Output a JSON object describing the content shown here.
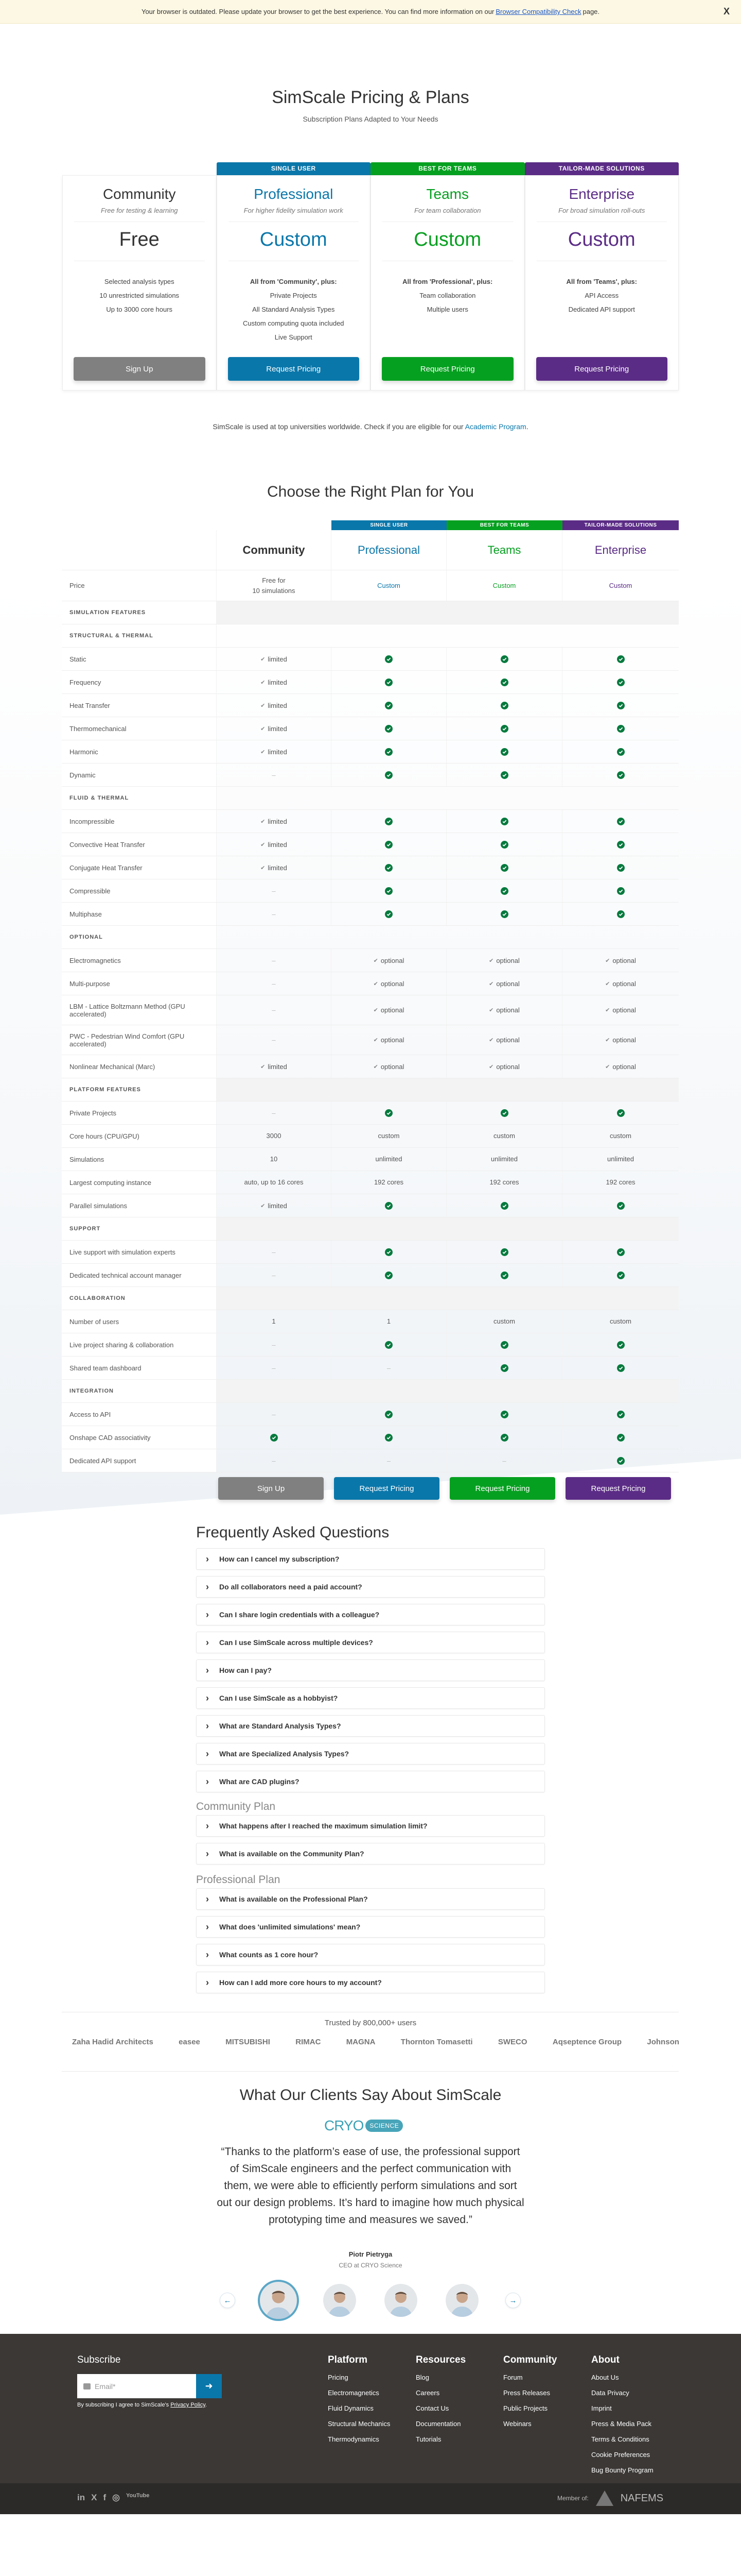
{
  "colors": {
    "community": "#808080",
    "professional": "#0a77aa",
    "teams": "#06a020",
    "enterprise": "#5b2c86",
    "check": "#067a3e"
  },
  "banner": {
    "text_before": "Your browser is outdated. Please update your browser to get the best experience. You can find more information on our",
    "link": "Browser Compatibility Check",
    "text_after": "page.",
    "close": "X"
  },
  "hero": {
    "title": "SimScale Pricing & Plans",
    "subtitle": "Subscription Plans Adapted to Your Needs"
  },
  "plans": [
    {
      "ribbon": "",
      "name": "Community",
      "tagline": "Free for testing & learning",
      "price": "Free",
      "features": [
        "Selected analysis types",
        "10 unrestricted simulations",
        "Up to 3000 core hours"
      ],
      "button": "Sign Up"
    },
    {
      "ribbon": "SINGLE USER",
      "name": "Professional",
      "tagline": "For higher fidelity simulation work",
      "price": "Custom",
      "features": [
        "All from 'Community', plus:",
        "Private Projects",
        "All Standard Analysis Types",
        "Custom computing quota included",
        "Live Support"
      ],
      "button": "Request Pricing"
    },
    {
      "ribbon": "BEST FOR TEAMS",
      "name": "Teams",
      "tagline": "For team collaboration",
      "price": "Custom",
      "features": [
        "All from 'Professional', plus:",
        "Team collaboration",
        "Multiple users"
      ],
      "button": "Request Pricing"
    },
    {
      "ribbon": "TAILOR-MADE SOLUTIONS",
      "name": "Enterprise",
      "tagline": "For broad simulation roll-outs",
      "price": "Custom",
      "features": [
        "All from 'Teams', plus:",
        "API Access",
        "Dedicated API support"
      ],
      "button": "Request Pricing"
    }
  ],
  "academic": {
    "text": "SimScale is used at top universities worldwide. Check if you are eligible for our",
    "link": "Academic Program",
    "end": "."
  },
  "comparison": {
    "title": "Choose the Right Plan for You",
    "rows": [
      {
        "type": "price",
        "label": "Price",
        "values": [
          "Free for\n10 simulations",
          "Custom",
          "Custom",
          "Custom"
        ]
      },
      {
        "type": "section",
        "label": "SIMULATION FEATURES"
      },
      {
        "type": "sub",
        "label": "STRUCTURAL & THERMAL"
      },
      {
        "label": "Static",
        "values": [
          "limited",
          "check",
          "check",
          "check"
        ]
      },
      {
        "label": "Frequency",
        "values": [
          "limited",
          "check",
          "check",
          "check"
        ]
      },
      {
        "label": "Heat Transfer",
        "values": [
          "limited",
          "check",
          "check",
          "check"
        ]
      },
      {
        "label": "Thermomechanical",
        "values": [
          "limited",
          "check",
          "check",
          "check"
        ]
      },
      {
        "label": "Harmonic",
        "values": [
          "limited",
          "check",
          "check",
          "check"
        ]
      },
      {
        "label": "Dynamic",
        "values": [
          "-",
          "check",
          "check",
          "check"
        ]
      },
      {
        "type": "sub",
        "label": "FLUID & THERMAL"
      },
      {
        "label": "Incompressible",
        "values": [
          "limited",
          "check",
          "check",
          "check"
        ]
      },
      {
        "label": "Convective Heat Transfer",
        "values": [
          "limited",
          "check",
          "check",
          "check"
        ]
      },
      {
        "label": "Conjugate Heat Transfer",
        "values": [
          "limited",
          "check",
          "check",
          "check"
        ]
      },
      {
        "label": "Compressible",
        "values": [
          "-",
          "check",
          "check",
          "check"
        ]
      },
      {
        "label": "Multiphase",
        "values": [
          "-",
          "check",
          "check",
          "check"
        ]
      },
      {
        "type": "sub",
        "label": "OPTIONAL"
      },
      {
        "label": "Electromagnetics",
        "values": [
          "-",
          "optional",
          "optional",
          "optional"
        ]
      },
      {
        "label": "Multi-purpose",
        "values": [
          "-",
          "optional",
          "optional",
          "optional"
        ]
      },
      {
        "label": "LBM - Lattice Boltzmann Method (GPU accelerated)",
        "values": [
          "-",
          "optional",
          "optional",
          "optional"
        ],
        "tall": true
      },
      {
        "label": "PWC - Pedestrian Wind Comfort (GPU accelerated)",
        "values": [
          "-",
          "optional",
          "optional",
          "optional"
        ],
        "tall": true
      },
      {
        "label": "Nonlinear Mechanical (Marc)",
        "values": [
          "limited",
          "optional",
          "optional",
          "optional"
        ]
      },
      {
        "type": "section",
        "label": "PLATFORM FEATURES"
      },
      {
        "label": "Private Projects",
        "values": [
          "-",
          "check",
          "check",
          "check"
        ]
      },
      {
        "label": "Core hours (CPU/GPU)",
        "values": [
          "3000",
          "custom",
          "custom",
          "custom"
        ]
      },
      {
        "label": "Simulations",
        "values": [
          "10",
          "unlimited",
          "unlimited",
          "unlimited"
        ]
      },
      {
        "label": "Largest computing instance",
        "values": [
          "auto, up to 16 cores",
          "192 cores",
          "192 cores",
          "192 cores"
        ]
      },
      {
        "label": "Parallel simulations",
        "values": [
          "limited",
          "check",
          "check",
          "check"
        ]
      },
      {
        "type": "section",
        "label": "SUPPORT"
      },
      {
        "label": "Live support with simulation experts",
        "values": [
          "-",
          "check",
          "check",
          "check"
        ]
      },
      {
        "label": "Dedicated technical account manager",
        "values": [
          "-",
          "check",
          "check",
          "check"
        ]
      },
      {
        "type": "section",
        "label": "COLLABORATION"
      },
      {
        "label": "Number of users",
        "values": [
          "1",
          "1",
          "custom",
          "custom"
        ]
      },
      {
        "label": "Live project sharing & collaboration",
        "values": [
          "-",
          "check",
          "check",
          "check"
        ]
      },
      {
        "label": "Shared team dashboard",
        "values": [
          "-",
          "-",
          "check",
          "check"
        ]
      },
      {
        "type": "section",
        "label": "INTEGRATION"
      },
      {
        "label": "Access to API",
        "values": [
          "-",
          "check",
          "check",
          "check"
        ]
      },
      {
        "label": "Onshape CAD associativity",
        "values": [
          "check",
          "check",
          "check",
          "check"
        ]
      },
      {
        "label": "Dedicated API support",
        "values": [
          "-",
          "-",
          "-",
          "check"
        ]
      }
    ]
  },
  "faq": {
    "title": "Frequently Asked Questions",
    "general": [
      "How can I cancel my subscription?",
      "Do all collaborators need a paid account?",
      "Can I share login credentials with a colleague?",
      "Can I use SimScale across multiple devices?",
      "How can I pay?",
      "Can I use SimScale as a hobbyist?",
      "What are Standard Analysis Types?",
      "What are Specialized Analysis Types?",
      "What are CAD plugins?"
    ],
    "community_heading": "Community Plan",
    "community": [
      "What happens after I reached the maximum simulation limit?",
      "What is available on the Community Plan?"
    ],
    "professional_heading": "Professional Plan",
    "professional": [
      "What is available on the Professional Plan?",
      "What does 'unlimited simulations' mean?",
      "What counts as 1 core hour?",
      "How can I add more core hours to my account?"
    ]
  },
  "trusted": {
    "title": "Trusted by 800,000+ users",
    "logos": [
      "Zaha Hadid Architects",
      "easee",
      "MITSUBISHI",
      "RIMAC",
      "MAGNA",
      "Thornton Tomasetti",
      "SWECO",
      "Aqseptence Group",
      "Johnson"
    ]
  },
  "testimonial": {
    "title": "What Our Clients Say About SimScale",
    "logo_main": "CRYO",
    "logo_badge": "SCIENCE",
    "quote": "“Thanks to the platform’s ease of use, the professional support of SimScale engineers and the perfect communication with them, we were able to efficiently perform simulations and sort out our design problems. It’s hard to imagine how much physical prototyping time and measures we saved.”",
    "name": "Piotr Pietryga",
    "role": "CEO at CRYO Science",
    "prev": "←",
    "next": "→"
  },
  "footer": {
    "subscribe": "Subscribe",
    "email_placeholder": "Email*",
    "consent": "By subscribing I agree to SimScale's",
    "privacy": "Privacy Policy",
    "consent_end": ".",
    "columns": [
      {
        "title": "Platform",
        "links": [
          "Pricing",
          "Electromagnetics",
          "Fluid Dynamics",
          "Structural Mechanics",
          "Thermodynamics"
        ]
      },
      {
        "title": "Resources",
        "links": [
          "Blog",
          "Careers",
          "Contact Us",
          "Documentation",
          "Tutorials"
        ]
      },
      {
        "title": "Community",
        "links": [
          "Forum",
          "Press Releases",
          "Public Projects",
          "Webinars"
        ]
      },
      {
        "title": "About",
        "links": [
          "About Us",
          "Data Privacy",
          "Imprint",
          "Press & Media Pack",
          "Terms & Conditions",
          "Cookie Preferences",
          "Bug Bounty Program"
        ]
      }
    ],
    "social": [
      "in",
      "X",
      "f",
      "◎",
      "YouTube"
    ],
    "member": "Member of:",
    "member_logo": "NAFEMS"
  }
}
